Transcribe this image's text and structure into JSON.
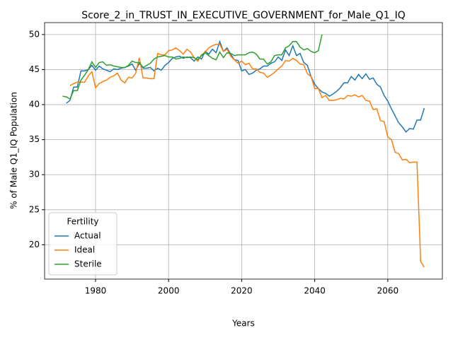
{
  "chart_data": {
    "type": "line",
    "title": "Score_2_in_TRUST_IN_EXECUTIVE_GOVERNMENT_for_Male_Q1_IQ",
    "x_label": "Years",
    "y_label": "% of Male Q1_IQ Population",
    "legend_title": "Fertility",
    "legend_position": "lower left",
    "grid": true,
    "xlim": [
      1966.05,
      2074.95
    ],
    "xticks": [
      1980,
      2000,
      2020,
      2040,
      2060
    ],
    "ylim": [
      15.1,
      51.7
    ],
    "yticks": [
      20,
      25,
      30,
      35,
      40,
      45,
      50
    ],
    "x": [
      1971,
      1972,
      1973,
      1974,
      1975,
      1976,
      1977,
      1978,
      1979,
      1980,
      1981,
      1982,
      1983,
      1984,
      1985,
      1986,
      1987,
      1988,
      1989,
      1990,
      1991,
      1992,
      1993,
      1994,
      1995,
      1996,
      1997,
      1998,
      1999,
      2000,
      2001,
      2002,
      2003,
      2004,
      2005,
      2006,
      2007,
      2008,
      2009,
      2010,
      2011,
      2012,
      2013,
      2014,
      2015,
      2016,
      2017,
      2018,
      2019,
      2020,
      2021,
      2022,
      2023,
      2024,
      2025,
      2026,
      2027,
      2028,
      2029,
      2030,
      2031,
      2032,
      2033,
      2034,
      2035,
      2036,
      2037,
      2038,
      2039,
      2040,
      2041,
      2042,
      2043,
      2044,
      2045,
      2046,
      2047,
      2048,
      2049,
      2050,
      2051,
      2052,
      2053,
      2054,
      2055,
      2056,
      2057,
      2058,
      2059,
      2060,
      2061,
      2062,
      2063,
      2064,
      2065,
      2066,
      2067,
      2068,
      2069,
      2070
    ],
    "series": [
      {
        "name": "Actual",
        "color": "#1f77b4",
        "values": [
          null,
          40.2,
          40.6,
          42.5,
          42.5,
          44.8,
          44.8,
          45.0,
          45.6,
          44.9,
          45.5,
          45.1,
          44.9,
          44.7,
          45.1,
          45.0,
          45.2,
          45.3,
          45.5,
          45.8,
          44.9,
          45.9,
          45.2,
          45.2,
          45.3,
          44.8,
          45.2,
          44.9,
          45.6,
          46.0,
          46.6,
          46.8,
          46.9,
          46.6,
          46.8,
          46.7,
          46.2,
          46.8,
          46.5,
          47.6,
          47.2,
          47.9,
          47.4,
          49.0,
          47.6,
          48.1,
          47.2,
          46.4,
          46.3,
          44.8,
          45.0,
          44.3,
          44.5,
          44.9,
          45.1,
          45.5,
          45.5,
          45.9,
          46.1,
          46.8,
          46.3,
          47.8,
          47.0,
          48.4,
          47.0,
          47.3,
          46.0,
          45.6,
          44.0,
          42.9,
          42.3,
          41.8,
          41.6,
          41.2,
          41.5,
          41.9,
          42.4,
          43.1,
          43.1,
          44.0,
          43.5,
          44.3,
          43.7,
          44.4,
          43.6,
          43.8,
          42.9,
          42.5,
          41.3,
          40.5,
          39.4,
          38.4,
          37.4,
          36.8,
          36.1,
          36.6,
          36.5,
          37.8,
          37.8,
          39.5
        ]
      },
      {
        "name": "Ideal",
        "color": "#ff7f0e",
        "values": [
          null,
          null,
          42.7,
          43.0,
          43.2,
          43.2,
          43.2,
          44.1,
          44.7,
          42.4,
          43.0,
          43.3,
          43.5,
          43.9,
          44.1,
          44.5,
          43.5,
          43.1,
          43.9,
          43.8,
          44.5,
          46.7,
          43.8,
          43.8,
          43.7,
          43.7,
          47.3,
          47.1,
          47.1,
          47.7,
          47.8,
          48.1,
          47.7,
          47.2,
          47.9,
          47.5,
          46.7,
          46.2,
          47.1,
          47.5,
          48.1,
          48.4,
          48.6,
          48.6,
          47.6,
          47.9,
          46.9,
          46.4,
          45.9,
          46.2,
          45.7,
          45.9,
          45.1,
          45.1,
          44.6,
          44.5,
          43.9,
          44.2,
          44.6,
          45.1,
          45.5,
          46.3,
          46.2,
          46.6,
          46.3,
          45.8,
          45.7,
          44.4,
          44.0,
          42.3,
          42.3,
          41.0,
          41.3,
          40.6,
          40.6,
          40.7,
          40.9,
          40.8,
          41.3,
          41.2,
          41.4,
          41.1,
          41.3,
          40.6,
          40.5,
          39.3,
          39.4,
          37.7,
          37.6,
          35.4,
          35.0,
          33.2,
          33.0,
          32.1,
          32.2,
          31.7,
          31.8,
          31.8,
          17.6,
          16.8
        ]
      },
      {
        "name": "Sterile",
        "color": "#2ca02c",
        "values": [
          41.2,
          41.1,
          40.8,
          42.0,
          42.0,
          43.5,
          44.2,
          45.0,
          46.1,
          45.3,
          46.0,
          46.1,
          45.6,
          45.7,
          45.5,
          45.4,
          45.3,
          45.3,
          45.6,
          46.2,
          46.0,
          46.0,
          45.3,
          45.6,
          45.9,
          46.5,
          46.8,
          46.9,
          47.0,
          46.8,
          46.8,
          46.5,
          46.6,
          46.8,
          46.7,
          46.8,
          46.7,
          46.4,
          47.0,
          47.4,
          47.0,
          46.6,
          46.4,
          47.5,
          46.7,
          47.4,
          47.3,
          47.0,
          47.1,
          47.1,
          47.1,
          47.4,
          47.5,
          47.2,
          46.5,
          46.5,
          45.8,
          46.1,
          47.0,
          47.1,
          47.1,
          48.1,
          48.4,
          49.0,
          49.0,
          48.2,
          47.8,
          48.0,
          47.6,
          47.4,
          47.7,
          50.0,
          null,
          null,
          null,
          null,
          null,
          null,
          null,
          null,
          null,
          null,
          null,
          null,
          null,
          null,
          null,
          null,
          null,
          null,
          null,
          null,
          null,
          null,
          null,
          null,
          null,
          null,
          null,
          null
        ]
      }
    ]
  }
}
